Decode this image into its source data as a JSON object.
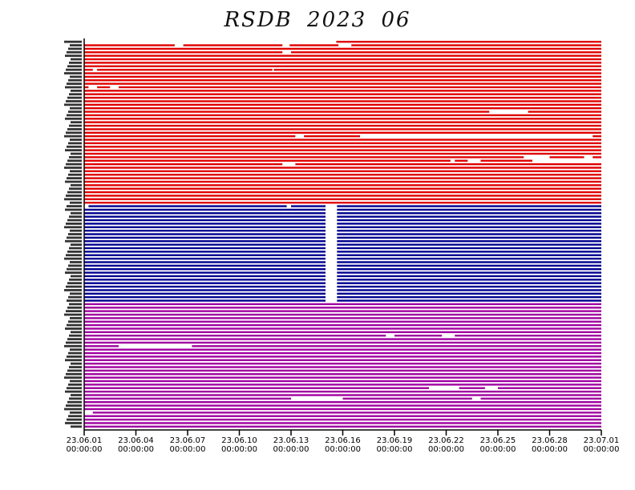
{
  "title": "RSDB  2023  06",
  "chart_data": {
    "type": "timeline",
    "title": "RSDB  2023  06",
    "x_range": [
      "23.06.01 00:00:00",
      "23.07.01 00:00:00"
    ],
    "x_ticks": [
      {
        "date": "23.06.01",
        "time": "00:00:00"
      },
      {
        "date": "23.06.04",
        "time": "00:00:00"
      },
      {
        "date": "23.06.07",
        "time": "00:00:00"
      },
      {
        "date": "23.06.10",
        "time": "00:00:00"
      },
      {
        "date": "23.06.13",
        "time": "00:00:00"
      },
      {
        "date": "23.06.16",
        "time": "00:00:00"
      },
      {
        "date": "23.06.19",
        "time": "00:00:00"
      },
      {
        "date": "23.06.22",
        "time": "00:00:00"
      },
      {
        "date": "23.06.25",
        "time": "00:00:00"
      },
      {
        "date": "23.06.28",
        "time": "00:00:00"
      },
      {
        "date": "23.07.01",
        "time": "00:00:00"
      }
    ],
    "groups": [
      {
        "color": "#e00000",
        "stations": 47,
        "gaps": [
          {
            "row": 0,
            "from": "23.06.01 00:00:00",
            "to": "23.06.15 15:00:00"
          },
          {
            "row": 1,
            "from": "23.06.06 06:00:00",
            "to": "23.06.06 18:00:00"
          },
          {
            "row": 1,
            "from": "23.06.12 12:00:00",
            "to": "23.06.12 22:00:00"
          },
          {
            "row": 1,
            "from": "23.06.15 18:00:00",
            "to": "23.06.16 12:00:00"
          },
          {
            "row": 3,
            "from": "23.06.12 12:00:00",
            "to": "23.06.13 00:00:00"
          },
          {
            "row": 8,
            "from": "23.06.01 12:00:00",
            "to": "23.06.01 18:00:00"
          },
          {
            "row": 8,
            "from": "23.06.11 22:00:00",
            "to": "23.06.12 00:00:00"
          },
          {
            "row": 13,
            "from": "23.06.01 06:00:00",
            "to": "23.06.01 18:00:00"
          },
          {
            "row": 13,
            "from": "23.06.02 12:00:00",
            "to": "23.06.03 00:00:00"
          },
          {
            "row": 20,
            "from": "23.06.24 12:00:00",
            "to": "23.06.26 18:00:00"
          },
          {
            "row": 27,
            "from": "23.06.13 06:00:00",
            "to": "23.06.13 18:00:00"
          },
          {
            "row": 27,
            "from": "23.06.17 00:00:00",
            "to": "23.06.30 12:00:00"
          },
          {
            "row": 33,
            "from": "23.06.26 12:00:00",
            "to": "23.06.28 00:00:00"
          },
          {
            "row": 33,
            "from": "23.06.30 00:00:00",
            "to": "23.06.30 12:00:00"
          },
          {
            "row": 34,
            "from": "23.06.22 06:00:00",
            "to": "23.06.22 12:00:00"
          },
          {
            "row": 34,
            "from": "23.06.23 06:00:00",
            "to": "23.06.24 00:00:00"
          },
          {
            "row": 34,
            "from": "23.06.27 00:00:00",
            "to": "23.07.01 00:00:00"
          },
          {
            "row": 35,
            "from": "23.06.12 12:00:00",
            "to": "23.06.13 06:00:00"
          }
        ]
      },
      {
        "color": "#000090",
        "stations": 28,
        "gaps": [
          {
            "row": 0,
            "from": "23.06.01 00:00:00",
            "to": "23.06.01 06:00:00"
          },
          {
            "row": 0,
            "from": "23.06.12 18:00:00",
            "to": "23.06.13 00:00:00"
          },
          {
            "all_rows": true,
            "from": "23.06.15 00:00:00",
            "to": "23.06.15 16:00:00"
          }
        ]
      },
      {
        "color": "#a000a0",
        "stations": 36,
        "gaps": [
          {
            "row": 12,
            "from": "23.06.03 00:00:00",
            "to": "23.06.07 06:00:00"
          },
          {
            "row": 9,
            "from": "23.06.18 12:00:00",
            "to": "23.06.19 00:00:00"
          },
          {
            "row": 9,
            "from": "23.06.21 18:00:00",
            "to": "23.06.22 12:00:00"
          },
          {
            "row": 24,
            "from": "23.06.21 00:00:00",
            "to": "23.06.22 18:00:00"
          },
          {
            "row": 24,
            "from": "23.06.24 06:00:00",
            "to": "23.06.25 00:00:00"
          },
          {
            "row": 27,
            "from": "23.06.13 00:00:00",
            "to": "23.06.16 00:00:00"
          },
          {
            "row": 27,
            "from": "23.06.23 12:00:00",
            "to": "23.06.24 00:00:00"
          },
          {
            "row": 31,
            "from": "23.06.01 00:00:00",
            "to": "23.06.01 12:00:00"
          }
        ]
      }
    ]
  }
}
